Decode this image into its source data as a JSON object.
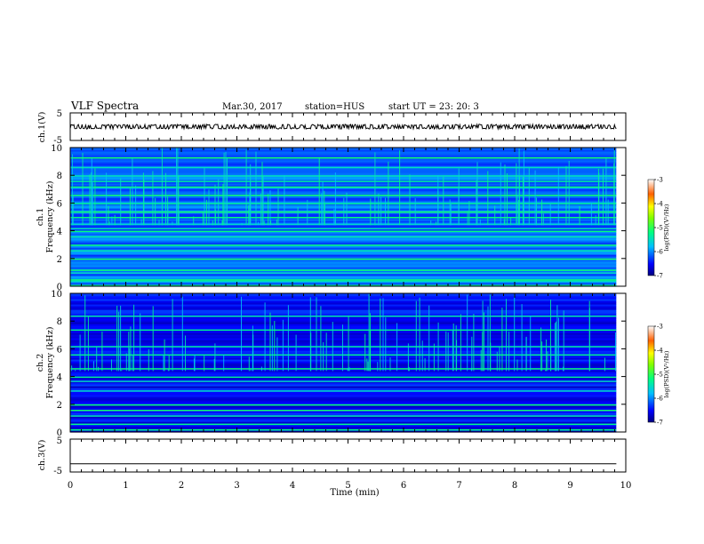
{
  "header": {
    "title": "VLF Spectra",
    "date": "Mar.30, 2017",
    "station": "station=HUS",
    "start": "start  UT  =    23: 20: 3"
  },
  "chart_data": [
    {
      "type": "line",
      "panel": "ch1-waveform",
      "ylabel": "ch.1(V)",
      "y_ticks": [
        "5",
        "-5"
      ],
      "ylim": [
        -5,
        5
      ],
      "xlim": [
        0,
        10
      ],
      "baseline": 0,
      "noise_amplitude": 0.6,
      "color": "#000000"
    },
    {
      "type": "heatmap",
      "panel": "ch1-spectrogram",
      "ylabel": "ch.1\nFrequency  (kHz)",
      "ylabel_line1": "ch.1",
      "ylabel_line2": "Frequency  (kHz)",
      "y_ticks": [
        "0",
        "2",
        "4",
        "6",
        "8",
        "10"
      ],
      "ylim": [
        0,
        10
      ],
      "xlim": [
        0,
        9.83
      ],
      "colorbar": {
        "title": "log(PSD)(V²/Hz)",
        "ticks": [
          "-3",
          "-4",
          "-5",
          "-6",
          "-7"
        ],
        "range": [
          -7,
          -3
        ]
      },
      "bands_khz": [
        0.1,
        0.4,
        0.5,
        1.0,
        1.2,
        2.0,
        2.6,
        3.0,
        3.6,
        4.0,
        4.2,
        4.5,
        5.0,
        5.4,
        6.0,
        6.6,
        7.2,
        7.6,
        8.0,
        8.6,
        9.3
      ]
    },
    {
      "type": "heatmap",
      "panel": "ch2-spectrogram",
      "ylabel": "ch.2\nFrequency  (kHz)",
      "ylabel_line1": "ch.2",
      "ylabel_line2": "Frequency  (kHz)",
      "y_ticks": [
        "0",
        "2",
        "4",
        "6",
        "8",
        "10"
      ],
      "ylim": [
        0,
        10
      ],
      "xlim": [
        0,
        9.83
      ],
      "colorbar": {
        "title": "log(PSD)(V²/Hz)",
        "ticks": [
          "-3",
          "-4",
          "-5",
          "-6",
          "-7"
        ],
        "range": [
          -7,
          -3
        ]
      },
      "bands_khz": [
        0.2,
        0.6,
        1.2,
        1.6,
        2.0,
        3.0,
        3.7,
        4.0,
        4.6,
        5.6,
        6.2,
        7.4,
        8.4
      ]
    },
    {
      "type": "line",
      "panel": "ch3-waveform",
      "ylabel": "ch.3(V)",
      "y_ticks": [
        "5",
        "-5"
      ],
      "ylim": [
        -5,
        5
      ],
      "xlim": [
        0,
        9.83
      ],
      "baseline": -2.5,
      "noise_amplitude": 0,
      "color": "#000000"
    }
  ],
  "x_axis": {
    "label": "Time  (min)",
    "ticks": [
      "0",
      "1",
      "2",
      "3",
      "4",
      "5",
      "6",
      "7",
      "8",
      "9",
      "10"
    ],
    "range": [
      0,
      10
    ]
  }
}
